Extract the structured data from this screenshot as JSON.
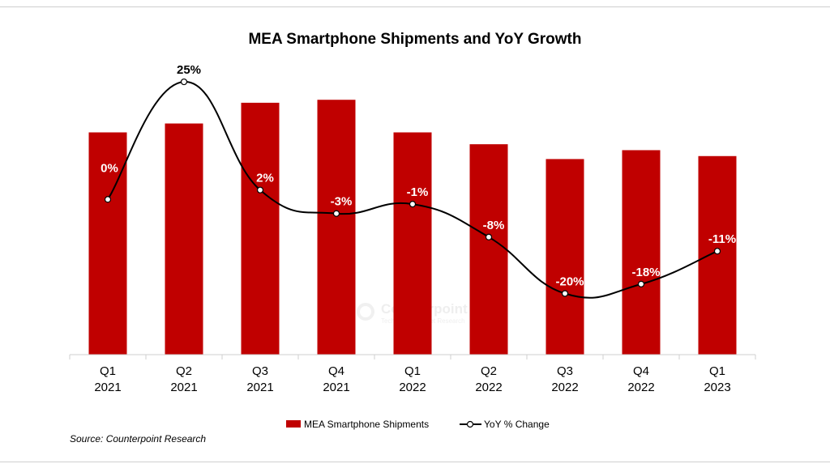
{
  "chart_data": {
    "type": "bar",
    "title": "MEA Smartphone Shipments and YoY Growth",
    "categories": [
      [
        "Q1",
        "2021"
      ],
      [
        "Q2",
        "2021"
      ],
      [
        "Q3",
        "2021"
      ],
      [
        "Q4",
        "2021"
      ],
      [
        "Q1",
        "2022"
      ],
      [
        "Q2",
        "2022"
      ],
      [
        "Q3",
        "2022"
      ],
      [
        "Q4",
        "2022"
      ],
      [
        "Q1",
        "2023"
      ]
    ],
    "series": [
      {
        "name": "MEA Smartphone Shipments",
        "type": "bar",
        "color": "#c00000",
        "values": [
          0.75,
          0.78,
          0.85,
          0.86,
          0.75,
          0.71,
          0.66,
          0.69,
          0.67
        ]
      },
      {
        "name": "YoY % Change",
        "type": "line",
        "color": "#000000",
        "values": [
          0,
          25,
          2,
          -3,
          -1,
          -8,
          -20,
          -18,
          -11
        ],
        "labels": [
          "0%",
          "25%",
          "2%",
          "-3%",
          "-1%",
          "-8%",
          "-20%",
          "-18%",
          "-11%"
        ]
      }
    ],
    "bar_ylim": [
      0,
      1
    ],
    "line_ylim": [
      -33,
      30
    ],
    "legend_position": "bottom",
    "grid": false,
    "source": "Source: Counterpoint Research"
  },
  "watermark": {
    "title": "Counterpoint",
    "subtitle": "Technology Market Research"
  }
}
